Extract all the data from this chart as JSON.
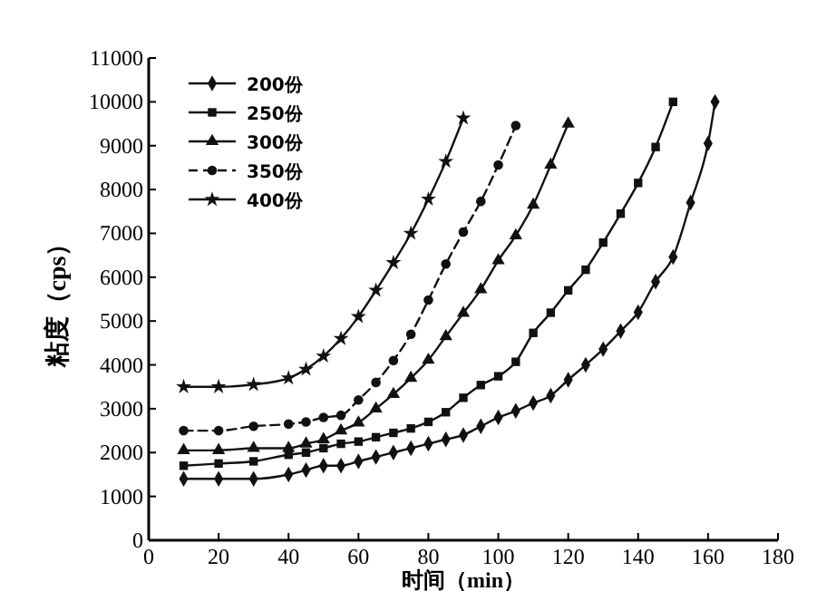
{
  "chart_data": {
    "type": "line",
    "xlabel": "时间（min）",
    "ylabel": "粘度（cps）",
    "xlim": [
      0,
      180
    ],
    "xticks": [
      0,
      20,
      40,
      60,
      80,
      100,
      120,
      140,
      160,
      180
    ],
    "ylim": [
      0,
      11000
    ],
    "yticks": [
      0,
      1000,
      2000,
      3000,
      4000,
      5000,
      6000,
      7000,
      8000,
      9000,
      10000,
      11000
    ],
    "grid": false,
    "legend": "top left",
    "series": [
      {
        "name": "200份",
        "color": "#111111",
        "marker": "diamond",
        "line_style": "solid",
        "x": [
          10,
          20,
          30,
          40,
          45,
          50,
          55,
          60,
          65,
          70,
          75,
          80,
          85,
          90,
          95,
          100,
          105,
          110,
          115,
          120,
          125,
          130,
          135,
          140,
          145,
          150,
          155,
          160,
          162
        ],
        "values": [
          1400,
          1400,
          1400,
          1500,
          1600,
          1700,
          1700,
          1800,
          1900,
          2000,
          2100,
          2200,
          2300,
          2400,
          2600,
          2800,
          2950,
          3130,
          3300,
          3660,
          4000,
          4360,
          4770,
          5200,
          5900,
          6460,
          7700,
          9050,
          10000
        ]
      },
      {
        "name": "250份",
        "color": "#111111",
        "marker": "square",
        "line_style": "solid",
        "x": [
          10,
          20,
          30,
          40,
          45,
          50,
          55,
          60,
          65,
          70,
          75,
          80,
          85,
          90,
          95,
          100,
          105,
          110,
          115,
          120,
          125,
          130,
          135,
          140,
          145,
          150
        ],
        "values": [
          1700,
          1750,
          1800,
          1950,
          2000,
          2100,
          2200,
          2250,
          2350,
          2450,
          2550,
          2700,
          2920,
          3250,
          3540,
          3740,
          4070,
          4730,
          5190,
          5700,
          6170,
          6790,
          7450,
          8150,
          8970,
          10000
        ]
      },
      {
        "name": "300份",
        "color": "#111111",
        "marker": "triangle",
        "line_style": "solid",
        "x": [
          10,
          20,
          30,
          40,
          45,
          50,
          55,
          60,
          65,
          70,
          75,
          80,
          85,
          90,
          95,
          100,
          105,
          110,
          115,
          120
        ],
        "values": [
          2050,
          2050,
          2100,
          2100,
          2200,
          2300,
          2500,
          2680,
          3000,
          3330,
          3700,
          4110,
          4650,
          5180,
          5720,
          6380,
          6950,
          7650,
          8560,
          9500
        ]
      },
      {
        "name": "350份",
        "color": "#111111",
        "marker": "circle",
        "line_style": "dashed",
        "x": [
          10,
          20,
          30,
          40,
          45,
          50,
          55,
          60,
          65,
          70,
          75,
          80,
          85,
          90,
          95,
          100,
          105
        ],
        "values": [
          2500,
          2500,
          2600,
          2650,
          2700,
          2800,
          2850,
          3200,
          3600,
          4100,
          4700,
          5480,
          6300,
          7030,
          7730,
          8560,
          9460
        ]
      },
      {
        "name": "400份",
        "color": "#111111",
        "marker": "star",
        "line_style": "solid",
        "x": [
          10,
          20,
          30,
          40,
          45,
          50,
          55,
          60,
          65,
          70,
          75,
          80,
          85,
          90
        ],
        "values": [
          3500,
          3500,
          3550,
          3700,
          3900,
          4200,
          4600,
          5100,
          5700,
          6330,
          7000,
          7780,
          8640,
          9630
        ]
      }
    ]
  }
}
